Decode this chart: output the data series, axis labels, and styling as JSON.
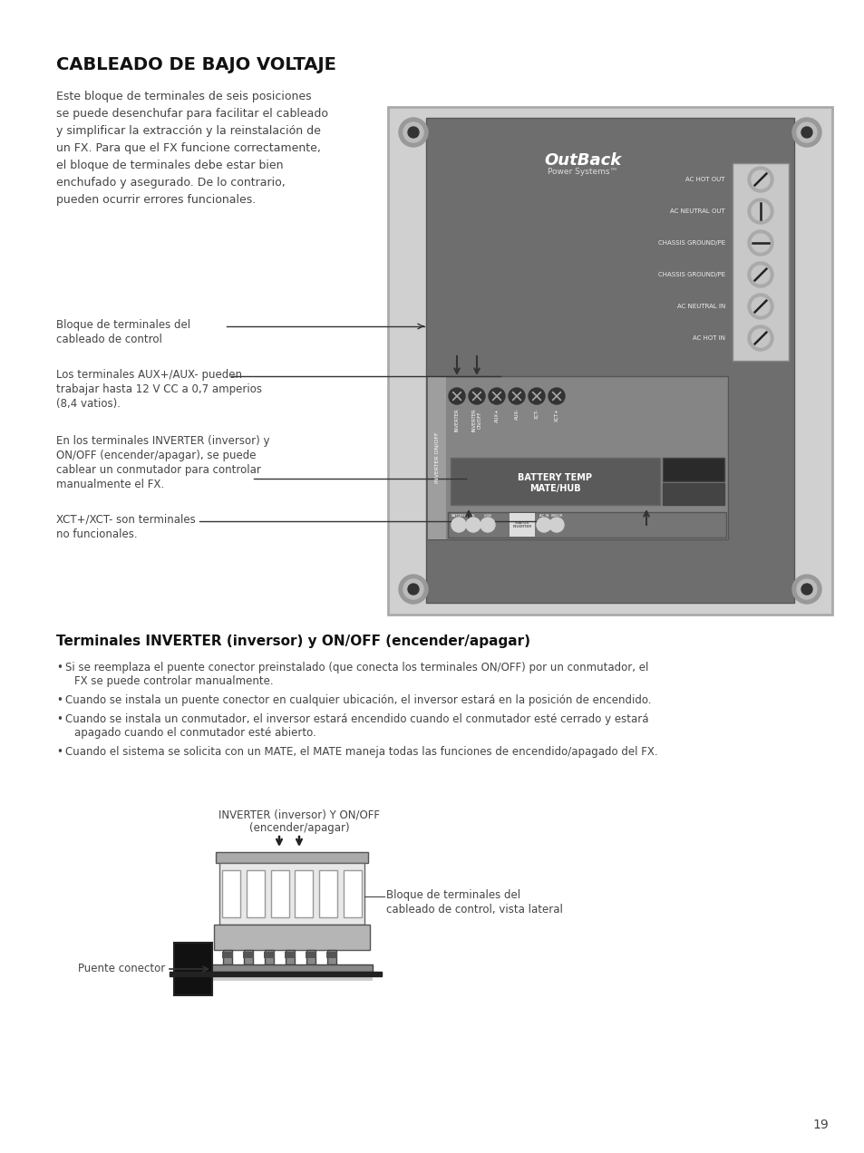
{
  "title": "CABLEADO DE BAJO VOLTAJE",
  "body_text_lines": [
    "Este bloque de terminales de seis posiciones",
    "se puede desenchufar para facilitar el cableado",
    "y simplificar la extracción y la reinstalación de",
    "un FX. Para que el FX funcione correctamente,",
    "el bloque de terminales debe estar bien",
    "enchufado y asegurado. De lo contrario,",
    "pueden ocurrir errores funcionales."
  ],
  "label1_line1": "Bloque de terminales del",
  "label1_line2": "cableado de control",
  "label2_line1": "Los terminales AUX+/AUX- pueden",
  "label2_line2": "trabajar hasta 12 V CC a 0,7 amperios",
  "label2_line3": "(8,4 vatios).",
  "label3_line1": "En los terminales INVERTER (inversor) y",
  "label3_line2": "ON/OFF (encender/apagar), se puede",
  "label3_line3": "cablear un conmutador para controlar",
  "label3_line4": "manualmente el FX.",
  "label4_line1": "XCT+/XCT- son terminales",
  "label4_line2": "no funcionales.",
  "section2_title": "Terminales INVERTER (inversor) y ON/OFF (encender/apagar)",
  "bullet1_line1": "Si se reemplaza el puente conector preinstalado (que conecta los terminales ON/OFF) por un conmutador, el",
  "bullet1_line2": "FX se puede controlar manualmente.",
  "bullet2": "Cuando se instala un puente conector en cualquier ubicación, el inversor estará en la posición de encendido.",
  "bullet3_line1": "Cuando se instala un conmutador, el inversor estará encendido cuando el conmutador esté cerrado y estará",
  "bullet3_line2": "apagado cuando el conmutador esté abierto.",
  "bullet4": "Cuando el sistema se solicita con un MATE, el MATE maneja todas las funciones de encendido/apagado del FX.",
  "diag2_top1": "INVERTER (inversor) Y ON/OFF",
  "diag2_top2": "(encender/apagar)",
  "diag2_right1": "Bloque de terminales del",
  "diag2_right2": "cableado de control, vista lateral",
  "diag2_bottom": "Puente conector",
  "term_labels": [
    "AC HOT OUT",
    "AC NEUTRAL OUT",
    "CHASSIS GROUND/PE",
    "CHASSIS GROUND/PE",
    "AC NEUTRAL IN",
    "AC HOT IN"
  ],
  "ctrl_labels": [
    "INVERTER",
    "INVERTER\nON/OFF",
    "AUX+",
    "AUX-",
    "XCT-",
    "XCT+"
  ],
  "page_number": "19",
  "bg": "#ffffff",
  "tc": "#444444",
  "panel_outer": "#cccccc",
  "panel_dark": "#707070",
  "panel_mid": "#909090",
  "term_strip_bg": "#d8d8d8",
  "screw_outer": "#888888",
  "screw_mid": "#aaaaaa",
  "screw_inner": "#444444"
}
